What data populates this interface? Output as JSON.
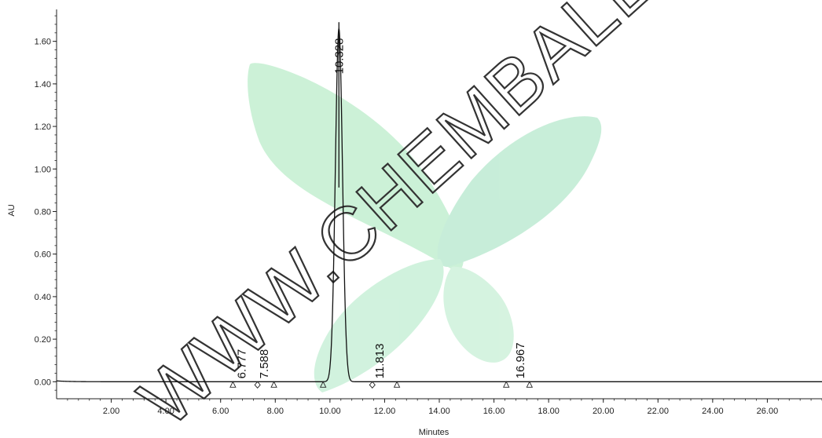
{
  "chart_data": {
    "type": "line",
    "title": "",
    "xlabel": "Minutes",
    "ylabel": "AU",
    "xlim": [
      0,
      28.0
    ],
    "ylim": [
      -0.08,
      1.75
    ],
    "x_ticks": [
      "2.00",
      "4.00",
      "6.00",
      "8.00",
      "10.00",
      "12.00",
      "14.00",
      "16.00",
      "18.00",
      "20.00",
      "22.00",
      "24.00",
      "26.00"
    ],
    "y_ticks": [
      "0.00",
      "0.20",
      "0.40",
      "0.60",
      "0.80",
      "1.00",
      "1.20",
      "1.40",
      "1.60"
    ],
    "baseline": 0.0,
    "peaks": [
      {
        "label": "6.777",
        "rt": 6.777,
        "height": 0.0
      },
      {
        "label": "7.588",
        "rt": 7.588,
        "height": 0.0
      },
      {
        "label": "10.328",
        "rt": 10.328,
        "height": 1.66
      },
      {
        "label": "11.813",
        "rt": 11.813,
        "height": 0.0
      },
      {
        "label": "16.967",
        "rt": 16.967,
        "height": 0.0
      }
    ],
    "integration_markers": [
      {
        "x": 6.45,
        "kind": "triangle"
      },
      {
        "x": 7.35,
        "kind": "diamond"
      },
      {
        "x": 7.95,
        "kind": "triangle"
      },
      {
        "x": 9.75,
        "kind": "triangle"
      },
      {
        "x": 11.55,
        "kind": "diamond"
      },
      {
        "x": 12.45,
        "kind": "triangle"
      },
      {
        "x": 16.45,
        "kind": "triangle"
      },
      {
        "x": 17.3,
        "kind": "triangle"
      }
    ]
  },
  "watermark": {
    "text": "WWW.CHEMBALL.COM",
    "leaf_color": "#bfeecf"
  }
}
